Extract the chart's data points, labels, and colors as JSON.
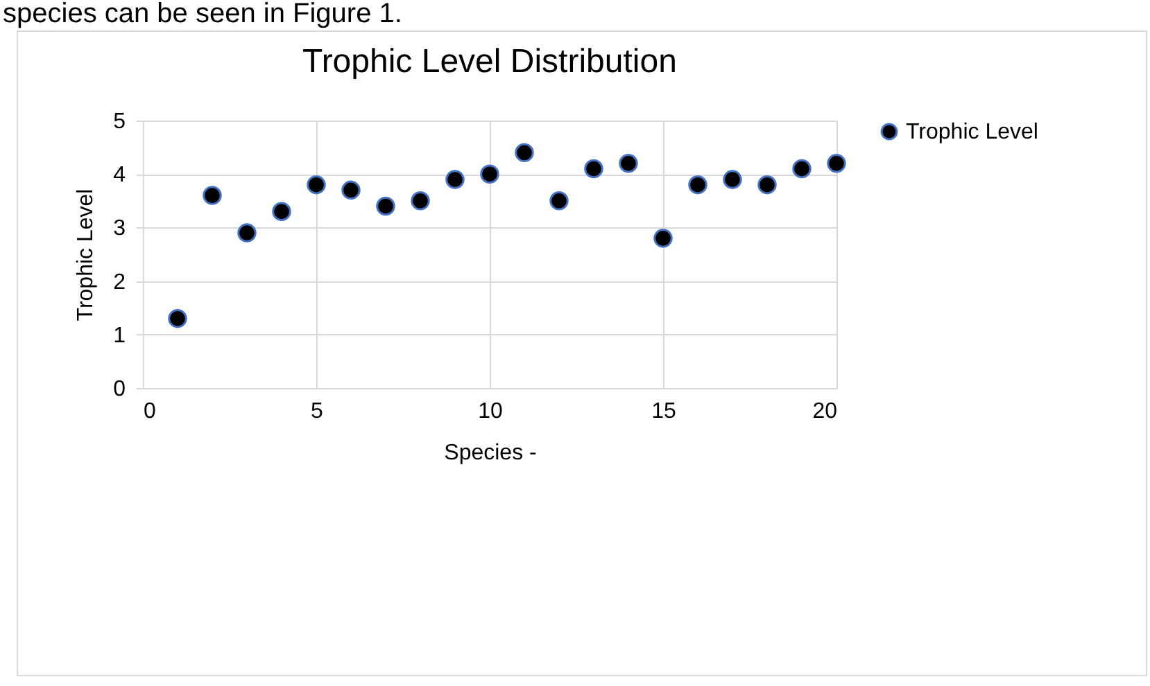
{
  "chart_data": {
    "type": "scatter",
    "title": "Trophic Level Distribution",
    "xlabel": "Species -",
    "ylabel": "Trophic Level",
    "annotations": [
      "species can be seen in Figure 1."
    ],
    "x": [
      1,
      2,
      3,
      4,
      5,
      6,
      7,
      8,
      9,
      10,
      11,
      12,
      13,
      14,
      15,
      16,
      17,
      18,
      19,
      20
    ],
    "series": [
      {
        "name": "Trophic Level",
        "color": "#000000",
        "values": [
          1.3,
          3.6,
          2.9,
          3.3,
          3.8,
          3.7,
          3.4,
          3.5,
          3.9,
          4.0,
          4.4,
          3.5,
          4.1,
          4.2,
          2.8,
          3.8,
          3.9,
          3.8,
          4.1,
          4.2
        ]
      }
    ],
    "xlim": [
      0,
      20
    ],
    "xticks": [
      0,
      5,
      10,
      15,
      20
    ],
    "ylim": [
      0,
      5
    ],
    "yticks": [
      0,
      1,
      2,
      3,
      4,
      5
    ],
    "grid": true,
    "legend": "right",
    "marker": "circle"
  }
}
